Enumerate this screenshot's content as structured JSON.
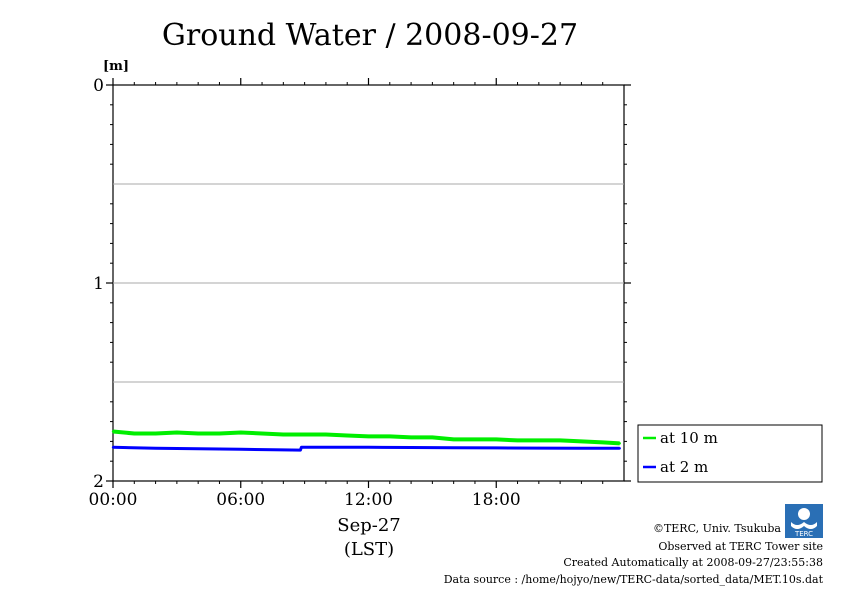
{
  "chart_data": {
    "type": "line",
    "title": "Ground Water / 2008-09-27",
    "ylabel": "[m]",
    "ylim": [
      0,
      2
    ],
    "y_inverted": true,
    "yticks": [
      "0",
      "1",
      "2"
    ],
    "grid": "horizontal",
    "xlim_hours": [
      0,
      24
    ],
    "xticks": [
      "00:00",
      "06:00",
      "12:00",
      "18:00"
    ],
    "xlabel_date": "Sep-27",
    "xlabel_zone": "(LST)",
    "legend_position": "right",
    "series": [
      {
        "name": "at 10 m",
        "color": "#00ee00",
        "x_hours": [
          0,
          1,
          2,
          3,
          4,
          5,
          6,
          7,
          8,
          9,
          10,
          11,
          12,
          13,
          14,
          15,
          16,
          17,
          18,
          19,
          20,
          21,
          22,
          23,
          23.8
        ],
        "values": [
          1.75,
          1.76,
          1.76,
          1.755,
          1.76,
          1.76,
          1.755,
          1.76,
          1.765,
          1.765,
          1.765,
          1.77,
          1.775,
          1.775,
          1.78,
          1.78,
          1.79,
          1.79,
          1.79,
          1.795,
          1.795,
          1.795,
          1.8,
          1.805,
          1.81
        ]
      },
      {
        "name": "at 2 m",
        "color": "#0000ff",
        "x_hours": [
          0,
          2,
          4,
          6,
          8,
          8.8,
          8.85,
          10,
          12,
          14,
          16,
          18,
          20,
          22,
          23.8
        ],
        "values": [
          1.83,
          1.835,
          1.837,
          1.84,
          1.843,
          1.844,
          1.83,
          1.83,
          1.83,
          1.831,
          1.832,
          1.833,
          1.834,
          1.835,
          1.835
        ]
      }
    ]
  },
  "credits": {
    "copyright": "©TERC, Univ. Tsukuba",
    "observed": "Observed at TERC Tower site",
    "created": "Created Automatically at 2008-09-27/23:55:38",
    "source": "Data source : /home/hojyo/new/TERC-data/sorted_data/MET.10s.dat",
    "logo_text": "TERC"
  }
}
